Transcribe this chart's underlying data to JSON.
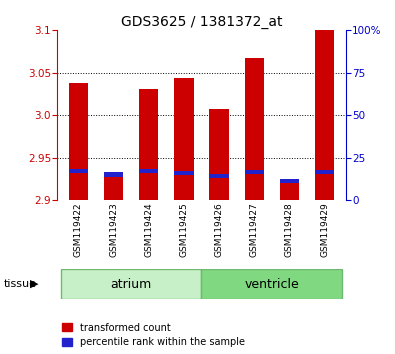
{
  "title": "GDS3625 / 1381372_at",
  "samples": [
    "GSM119422",
    "GSM119423",
    "GSM119424",
    "GSM119425",
    "GSM119426",
    "GSM119427",
    "GSM119428",
    "GSM119429"
  ],
  "red_values": [
    3.038,
    2.928,
    3.031,
    3.044,
    3.007,
    3.067,
    2.92,
    3.1
  ],
  "blue_values": [
    2.934,
    2.93,
    2.934,
    2.932,
    2.928,
    2.933,
    2.922,
    2.933
  ],
  "ymin": 2.9,
  "ymax": 3.1,
  "yticks": [
    2.9,
    2.95,
    3.0,
    3.05,
    3.1
  ],
  "right_yticks": [
    0,
    25,
    50,
    75,
    100
  ],
  "right_yticklabels": [
    "0",
    "25",
    "50",
    "75",
    "100%"
  ],
  "grid_values": [
    2.95,
    3.0,
    3.05
  ],
  "bar_width": 0.55,
  "blue_bar_height": 0.005,
  "red_color": "#cc0000",
  "blue_color": "#2222cc",
  "bg_color": "#c8c8c8",
  "axis_bg": "#ffffff",
  "left_tick_color": "#cc0000",
  "right_tick_color": "#0000cc",
  "legend_red_label": "transformed count",
  "legend_blue_label": "percentile rank within the sample",
  "tissue_label": "tissue",
  "atrium_color": "#c8f0c8",
  "ventricle_color": "#80d880",
  "tissue_border_color": "#70b870"
}
